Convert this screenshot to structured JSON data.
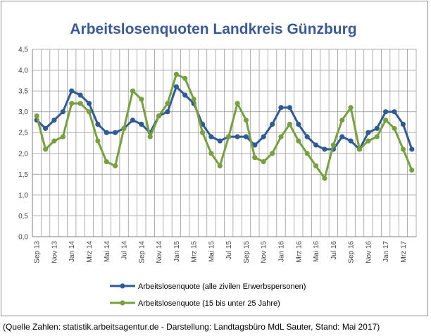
{
  "caption": "(Quelle Zahlen: statistik.arbeitsagentur.de - Darstellung: Landtagsbüro MdL Sauter, Stand: Mai 2017)",
  "chart_data": {
    "type": "line",
    "title": "Arbeitslosenquoten Landkreis Günzburg",
    "xlabel": "",
    "ylabel": "",
    "ylim": [
      0,
      4.5
    ],
    "yticks": [
      "0,0",
      "0,5",
      "1,0",
      "1,5",
      "2,0",
      "2,5",
      "3,0",
      "3,5",
      "4,0",
      "4,5"
    ],
    "grid": true,
    "legend_position": "bottom",
    "tick_labels": [
      "Sep 13",
      "Nov 13",
      "Jan 14",
      "Mrz 14",
      "Mai 14",
      "Jul 14",
      "Sep 14",
      "Nov 14",
      "Jan 15",
      "Mrz 15",
      "Mai 15",
      "Jul 15",
      "Sep 15",
      "Nov 15",
      "Jan 16",
      "Mrz 16",
      "Mai 16",
      "Jul 16",
      "Sep 16",
      "Nov 16",
      "Jan 17",
      "Mrz 17"
    ],
    "series": [
      {
        "name": "Arbeitslosenquote (alle zivilen Erwerbspersonen)",
        "color": "#2e5b94",
        "values": [
          2.8,
          2.6,
          2.8,
          3.0,
          3.5,
          3.4,
          3.2,
          2.7,
          2.5,
          2.5,
          2.6,
          2.8,
          2.7,
          2.5,
          2.9,
          3.0,
          3.6,
          3.4,
          3.2,
          2.7,
          2.4,
          2.3,
          2.4,
          2.4,
          2.4,
          2.2,
          2.4,
          2.7,
          3.1,
          3.1,
          2.7,
          2.4,
          2.2,
          2.1,
          2.1,
          2.4,
          2.3,
          2.1,
          2.5,
          2.6,
          3.0,
          3.0,
          2.7,
          2.1
        ]
      },
      {
        "name": "Arbeitslosenquote (15 bis unter 25 Jahre)",
        "color": "#77a03e",
        "values": [
          2.9,
          2.1,
          2.3,
          2.4,
          3.2,
          3.2,
          3.0,
          2.3,
          1.8,
          1.7,
          2.6,
          3.5,
          3.3,
          2.4,
          2.9,
          3.2,
          3.9,
          3.8,
          3.3,
          2.5,
          2.0,
          1.7,
          2.4,
          3.2,
          2.8,
          1.9,
          1.8,
          2.0,
          2.4,
          2.7,
          2.3,
          2.0,
          1.7,
          1.4,
          2.2,
          2.8,
          3.1,
          2.1,
          2.3,
          2.4,
          2.8,
          2.6,
          2.1,
          1.6
        ]
      }
    ]
  }
}
